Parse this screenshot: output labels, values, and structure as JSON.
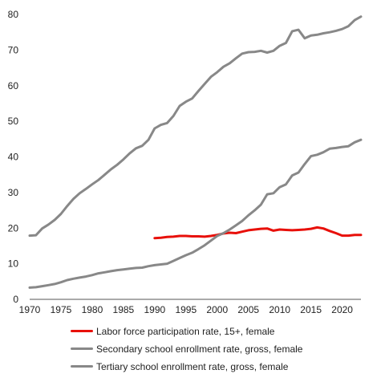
{
  "chart_data": {
    "type": "line",
    "title": "",
    "xlabel": "",
    "ylabel": "",
    "xlim": [
      1970,
      2023
    ],
    "ylim": [
      0,
      80
    ],
    "x_ticks": [
      1970,
      1975,
      1980,
      1985,
      1990,
      1995,
      2000,
      2005,
      2010,
      2015,
      2020
    ],
    "y_ticks": [
      0,
      10,
      20,
      30,
      40,
      50,
      60,
      70,
      80
    ],
    "grid": false,
    "legend_position": "bottom",
    "series": [
      {
        "name": "Labor force participation rate, 15+, female",
        "color": "#e8100a",
        "x": [
          1990,
          1991,
          1992,
          1993,
          1994,
          1995,
          1996,
          1997,
          1998,
          1999,
          2000,
          2001,
          2002,
          2003,
          2004,
          2005,
          2006,
          2007,
          2008,
          2009,
          2010,
          2011,
          2012,
          2013,
          2014,
          2015,
          2016,
          2017,
          2018,
          2019,
          2020,
          2021,
          2022,
          2023
        ],
        "values": [
          17.2,
          17.3,
          17.5,
          17.6,
          17.8,
          17.8,
          17.7,
          17.7,
          17.6,
          17.8,
          18.1,
          18.5,
          18.7,
          18.6,
          19.0,
          19.4,
          19.6,
          19.8,
          19.9,
          19.3,
          19.6,
          19.5,
          19.4,
          19.5,
          19.6,
          19.8,
          20.2,
          19.9,
          19.2,
          18.6,
          17.9,
          17.9,
          18.1,
          18.1
        ]
      },
      {
        "name": "Secondary school enrollment rate, gross, female",
        "color": "#888888",
        "x": [
          1970,
          1971,
          1972,
          1973,
          1974,
          1975,
          1976,
          1977,
          1978,
          1979,
          1980,
          1981,
          1982,
          1983,
          1984,
          1985,
          1986,
          1987,
          1988,
          1989,
          1990,
          1991,
          1992,
          1993,
          1994,
          1995,
          1996,
          1997,
          1998,
          1999,
          2000,
          2001,
          2002,
          2003,
          2004,
          2005,
          2006,
          2007,
          2008,
          2009,
          2010,
          2011,
          2012,
          2013,
          2014,
          2015,
          2016,
          2017,
          2018,
          2019,
          2020,
          2021,
          2022,
          2023
        ],
        "values": [
          17.9,
          18.0,
          19.9,
          21.0,
          22.3,
          24.0,
          26.2,
          28.2,
          29.8,
          31.0,
          32.3,
          33.5,
          35.0,
          36.5,
          37.8,
          39.3,
          41.0,
          42.4,
          43.1,
          44.8,
          48.0,
          49.0,
          49.5,
          51.5,
          54.3,
          55.5,
          56.4,
          58.5,
          60.5,
          62.5,
          63.8,
          65.3,
          66.3,
          67.7,
          69.0,
          69.4,
          69.5,
          69.8,
          69.3,
          69.8,
          71.2,
          72.0,
          75.3,
          75.7,
          73.3,
          74.1,
          74.3,
          74.7,
          75.0,
          75.4,
          75.9,
          76.7,
          78.4,
          79.4
        ]
      },
      {
        "name": "Tertiary school enrollment rate, gross, female",
        "color": "#888888",
        "x": [
          1970,
          1971,
          1972,
          1973,
          1974,
          1975,
          1976,
          1977,
          1978,
          1979,
          1980,
          1981,
          1982,
          1983,
          1984,
          1985,
          1986,
          1987,
          1988,
          1989,
          1990,
          1991,
          1992,
          1993,
          1994,
          1995,
          1996,
          1997,
          1998,
          1999,
          2000,
          2001,
          2002,
          2003,
          2004,
          2005,
          2006,
          2007,
          2008,
          2009,
          2010,
          2011,
          2012,
          2013,
          2014,
          2015,
          2016,
          2017,
          2018,
          2019,
          2020,
          2021,
          2022,
          2023
        ],
        "values": [
          3.3,
          3.4,
          3.7,
          4.0,
          4.3,
          4.8,
          5.4,
          5.8,
          6.1,
          6.4,
          6.8,
          7.3,
          7.6,
          7.9,
          8.2,
          8.4,
          8.6,
          8.8,
          8.9,
          9.3,
          9.6,
          9.8,
          10.0,
          10.8,
          11.6,
          12.4,
          13.1,
          14.1,
          15.2,
          16.5,
          17.8,
          18.6,
          19.6,
          20.8,
          22.0,
          23.6,
          25.0,
          26.6,
          29.5,
          29.8,
          31.5,
          32.3,
          34.8,
          35.6,
          38.0,
          40.2,
          40.6,
          41.3,
          42.3,
          42.5,
          42.8,
          43.0,
          44.1,
          44.8
        ]
      }
    ]
  }
}
